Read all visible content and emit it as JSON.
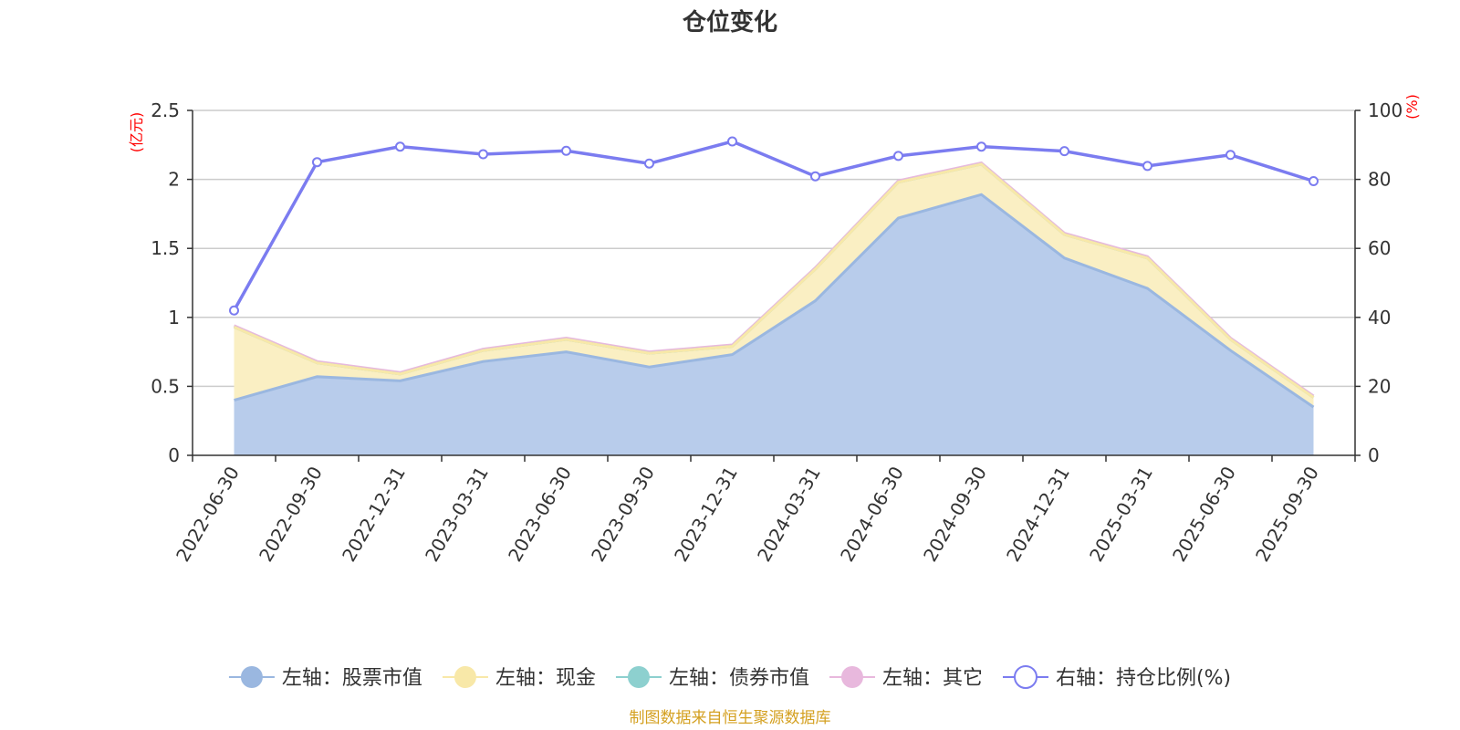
{
  "chart_data": {
    "type": "area",
    "title": "仓位变化",
    "categories": [
      "2022-06-30",
      "2022-09-30",
      "2022-12-31",
      "2023-03-31",
      "2023-06-30",
      "2023-09-30",
      "2023-12-31",
      "2024-03-31",
      "2024-06-30",
      "2024-09-30",
      "2024-12-31",
      "2025-03-31",
      "2025-06-30",
      "2025-09-30"
    ],
    "left_axis": {
      "unit": "(亿元)",
      "ylim": [
        0,
        2.5
      ],
      "ticks": [
        "0",
        "0.5",
        "1",
        "1.5",
        "2",
        "2.5"
      ]
    },
    "right_axis": {
      "unit": "(%)",
      "ylim": [
        0,
        100
      ],
      "ticks": [
        "0",
        "20",
        "40",
        "60",
        "80",
        "100"
      ]
    },
    "stacked": true,
    "series": [
      {
        "name": "左轴：股票市值",
        "axis": "left",
        "color": "#9ab7e0",
        "fill": "#b8cceb",
        "values": [
          0.4,
          0.57,
          0.54,
          0.68,
          0.75,
          0.64,
          0.73,
          1.12,
          1.72,
          1.89,
          1.43,
          1.21,
          0.76,
          0.35
        ]
      },
      {
        "name": "左轴：现金",
        "axis": "left",
        "color": "#f8e8a8",
        "fill": "#faefc3",
        "values": [
          0.53,
          0.1,
          0.05,
          0.08,
          0.09,
          0.1,
          0.06,
          0.23,
          0.26,
          0.22,
          0.17,
          0.22,
          0.08,
          0.07
        ]
      },
      {
        "name": "左轴：债券市值",
        "axis": "left",
        "color": "#8dd0cf",
        "fill": "#8dd0cf",
        "values": [
          0,
          0,
          0,
          0,
          0,
          0,
          0,
          0,
          0,
          0,
          0,
          0,
          0,
          0
        ]
      },
      {
        "name": "左轴：其它",
        "axis": "left",
        "color": "#e8b8dd",
        "fill": "#e8b8dd",
        "values": [
          0.01,
          0.01,
          0.01,
          0.01,
          0.01,
          0.01,
          0.01,
          0.01,
          0.01,
          0.01,
          0.01,
          0.01,
          0.01,
          0.01
        ]
      },
      {
        "name": "右轴：持仓比例(%)",
        "axis": "right",
        "color": "#7b7cf0",
        "values": [
          42,
          85,
          89.5,
          87.3,
          88.3,
          84.6,
          91,
          80.9,
          86.8,
          89.5,
          88.2,
          83.9,
          87.1,
          79.5
        ]
      }
    ],
    "source": "制图数据来自恒生聚源数据库"
  }
}
